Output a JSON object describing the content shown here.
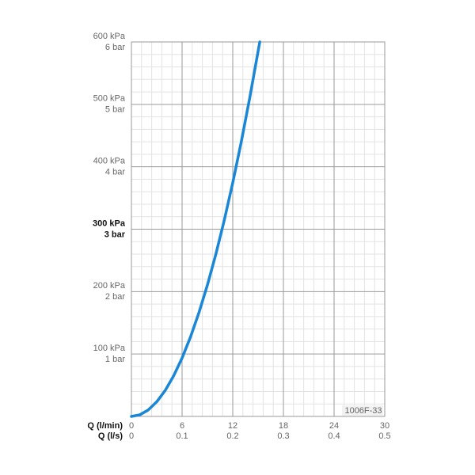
{
  "chart_data": {
    "type": "line",
    "xlabel": "Q (l/min)",
    "x2label": "Q (l/s)",
    "annotation": "1006F-33",
    "x": [
      0,
      1,
      2,
      3,
      4,
      5,
      6,
      7,
      8,
      9,
      10,
      11,
      12,
      13,
      14,
      15,
      15.2
    ],
    "values": [
      0,
      2.6,
      10.4,
      23.4,
      41.6,
      65,
      93.6,
      127.4,
      166.4,
      210.6,
      260,
      314.6,
      374.4,
      439.4,
      509.6,
      585,
      600
    ],
    "color": "#1a86d6",
    "xlim": [
      0,
      30
    ],
    "xticks": [
      0,
      6,
      12,
      18,
      24,
      30
    ],
    "x2lim": [
      0,
      0.5
    ],
    "x2ticks": [
      0,
      0.1,
      0.2,
      0.3,
      0.4,
      0.5
    ],
    "ylim": [
      0,
      600
    ],
    "yticks": [
      {
        "value": 100,
        "label": "100 kPa"
      },
      {
        "value": 200,
        "label": "200 kPa"
      },
      {
        "value": 300,
        "label": "300 kPa"
      },
      {
        "value": 400,
        "label": "400 kPa"
      },
      {
        "value": 500,
        "label": "500 kPa"
      },
      {
        "value": 600,
        "label": "600 kPa"
      }
    ],
    "y2lim": [
      0,
      6
    ],
    "y2ticks": [
      {
        "value": 1,
        "label": "1 bar"
      },
      {
        "value": 2,
        "label": "2 bar"
      },
      {
        "value": 3,
        "label": "3 bar"
      },
      {
        "value": 4,
        "label": "4 bar"
      },
      {
        "value": 5,
        "label": "5 bar"
      },
      {
        "value": 6,
        "label": "6 bar"
      }
    ],
    "highlight_ytick": 300,
    "grid": true,
    "minor_divisions": 5
  }
}
